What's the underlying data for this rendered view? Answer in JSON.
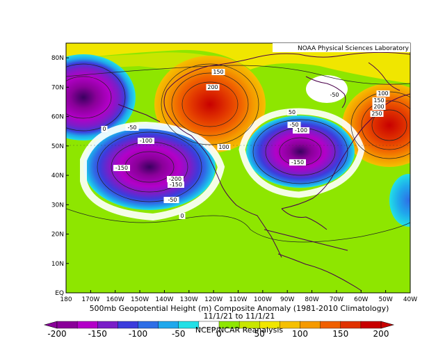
{
  "credit": "NOAA Physical Sciences Laboratory",
  "caption": {
    "title": "500mb Geopotential Height (m) Composite Anomaly (1981-2010 Climatology)",
    "dates": "11/1/21  to 11/1/21",
    "source": "NCEP/NCAR Reanalysis"
  },
  "axes": {
    "lat_labels": [
      "80N",
      "70N",
      "60N",
      "50N",
      "40N",
      "30N",
      "20N",
      "10N",
      "EQ"
    ],
    "lon_labels": [
      "180",
      "170W",
      "160W",
      "150W",
      "140W",
      "130W",
      "120W",
      "110W",
      "100W",
      "90W",
      "80W",
      "70W",
      "60W",
      "50W",
      "40W"
    ]
  },
  "colorbar": {
    "labels": [
      "-200",
      "-150",
      "-100",
      "-50",
      "0",
      "50",
      "100",
      "150",
      "200"
    ],
    "colors": [
      "#8a0099",
      "#b300c8",
      "#7a1ec8",
      "#3c3cdc",
      "#2e6ee6",
      "#1fa8ec",
      "#22e0e6",
      "#ffffff",
      "#8ee600",
      "#c8e600",
      "#f0e600",
      "#f5c000",
      "#f59a00",
      "#f06000",
      "#e03200",
      "#c80000"
    ]
  },
  "contour_labels": [
    {
      "text": "150",
      "anchor": "nw-ridge"
    },
    {
      "text": "200",
      "anchor": "nw-ridge"
    },
    {
      "text": "-50",
      "anchor": "bering"
    },
    {
      "text": "0",
      "anchor": "bering"
    },
    {
      "text": "-50",
      "anchor": "pacific-low"
    },
    {
      "text": "-100",
      "anchor": "pacific-low"
    },
    {
      "text": "-150",
      "anchor": "pacific-low"
    },
    {
      "text": "-200",
      "anchor": "pacific-low"
    },
    {
      "text": "-150",
      "anchor": "pacific-low"
    },
    {
      "text": "-50",
      "anchor": "pacific-low"
    },
    {
      "text": "100",
      "anchor": "central"
    },
    {
      "text": "50",
      "anchor": "central"
    },
    {
      "text": "-50",
      "anchor": "east-low"
    },
    {
      "text": "-100",
      "anchor": "east-low"
    },
    {
      "text": "-150",
      "anchor": "east-low"
    },
    {
      "text": "-50",
      "anchor": "hudson"
    },
    {
      "text": "100",
      "anchor": "atlantic-high"
    },
    {
      "text": "150",
      "anchor": "atlantic-high"
    },
    {
      "text": "200",
      "anchor": "atlantic-high"
    },
    {
      "text": "250",
      "anchor": "atlantic-high"
    },
    {
      "text": "0",
      "anchor": "pacific-high"
    }
  ]
}
